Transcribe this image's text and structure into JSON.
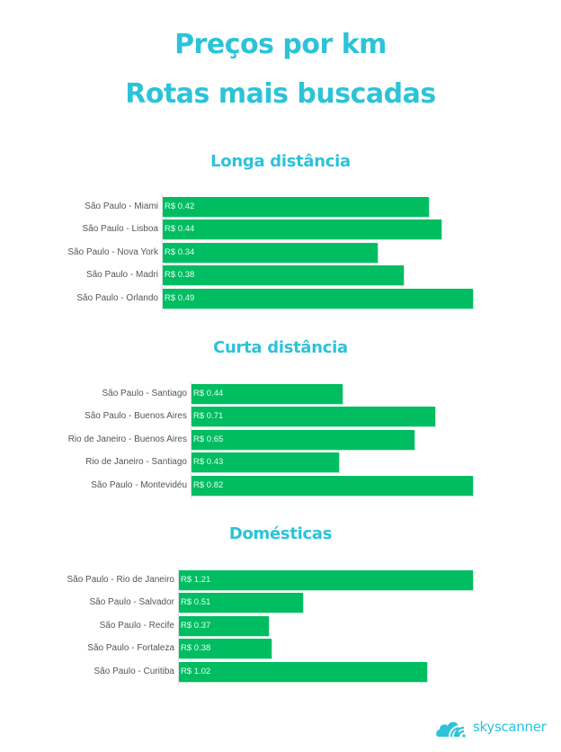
{
  "header": {
    "title_line1": "Preços por km",
    "title_line2": "Rotas mais buscadas"
  },
  "sections": [
    {
      "title": "Longa distância",
      "rows": [
        {
          "label": "São Paulo - Miami",
          "value_label": "R$ 0.42",
          "value": 0.42
        },
        {
          "label": "São Paulo - Lisboa",
          "value_label": "R$ 0.44",
          "value": 0.44
        },
        {
          "label": "São Paulo - Nova York",
          "value_label": "R$ 0.34",
          "value": 0.34
        },
        {
          "label": "São Paulo - Madri",
          "value_label": "R$ 0.38",
          "value": 0.38
        },
        {
          "label": "São Paulo - Orlando",
          "value_label": "R$ 0.49",
          "value": 0.49
        }
      ]
    },
    {
      "title": "Curta distância",
      "rows": [
        {
          "label": "São Paulo - Santiago",
          "value_label": "R$ 0.44",
          "value": 0.44
        },
        {
          "label": "São Paulo - Buenos Aires",
          "value_label": "R$ 0.71",
          "value": 0.71
        },
        {
          "label": "Rio de Janeiro - Buenos Aires",
          "value_label": "R$ 0.65",
          "value": 0.65
        },
        {
          "label": "Rio de Janeiro - Santiago",
          "value_label": "R$ 0.43",
          "value": 0.43
        },
        {
          "label": "São Paulo - Montevidéu",
          "value_label": "R$ 0.82",
          "value": 0.82
        }
      ]
    },
    {
      "title": "Domésticas",
      "rows": [
        {
          "label": "São Paulo - Rio de Janeiro",
          "value_label": "R$ 1.21",
          "value": 1.21
        },
        {
          "label": "São Paulo - Salvador",
          "value_label": "R$ 0.51",
          "value": 0.51
        },
        {
          "label": "São Paulo - Recife",
          "value_label": "R$ 0.37",
          "value": 0.37
        },
        {
          "label": "São Paulo - Fortaleza",
          "value_label": "R$ 0.38",
          "value": 0.38
        },
        {
          "label": "São Paulo - Curitiba",
          "value_label": "R$ 1.02",
          "value": 1.02
        }
      ]
    }
  ],
  "logo": {
    "text": "skyscanner",
    "icon": "skyscanner-cloud-icon"
  },
  "colors": {
    "accent": "#2cc3d9",
    "bar": "#00bd62",
    "label": "#555555"
  },
  "chart_data": [
    {
      "type": "bar",
      "orientation": "horizontal",
      "title": "Longa distância",
      "suptitle": "Preços por km — Rotas mais buscadas",
      "categories": [
        "São Paulo - Miami",
        "São Paulo - Lisboa",
        "São Paulo - Nova York",
        "São Paulo - Madri",
        "São Paulo - Orlando"
      ],
      "values": [
        0.42,
        0.44,
        0.34,
        0.38,
        0.49
      ],
      "value_labels": [
        "R$ 0.42",
        "R$ 0.44",
        "R$ 0.34",
        "R$ 0.38",
        "R$ 0.49"
      ],
      "xlabel": "",
      "ylabel": "",
      "unit": "R$ per km",
      "grid": false,
      "legend": null,
      "color": "#00bd62"
    },
    {
      "type": "bar",
      "orientation": "horizontal",
      "title": "Curta distância",
      "categories": [
        "São Paulo - Santiago",
        "São Paulo - Buenos Aires",
        "Rio de Janeiro - Buenos Aires",
        "Rio de Janeiro - Santiago",
        "São Paulo - Montevidéu"
      ],
      "values": [
        0.44,
        0.71,
        0.65,
        0.43,
        0.82
      ],
      "value_labels": [
        "R$ 0.44",
        "R$ 0.71",
        "R$ 0.65",
        "R$ 0.43",
        "R$ 0.82"
      ],
      "xlabel": "",
      "ylabel": "",
      "unit": "R$ per km",
      "grid": false,
      "legend": null,
      "color": "#00bd62"
    },
    {
      "type": "bar",
      "orientation": "horizontal",
      "title": "Domésticas",
      "categories": [
        "São Paulo - Rio de Janeiro",
        "São Paulo - Salvador",
        "São Paulo - Recife",
        "São Paulo - Fortaleza",
        "São Paulo - Curitiba"
      ],
      "values": [
        1.21,
        0.51,
        0.37,
        0.38,
        1.02
      ],
      "value_labels": [
        "R$ 1.21",
        "R$ 0.51",
        "R$ 0.37",
        "R$ 0.38",
        "R$ 1.02"
      ],
      "xlabel": "",
      "ylabel": "",
      "unit": "R$ per km",
      "grid": false,
      "legend": null,
      "color": "#00bd62"
    }
  ]
}
